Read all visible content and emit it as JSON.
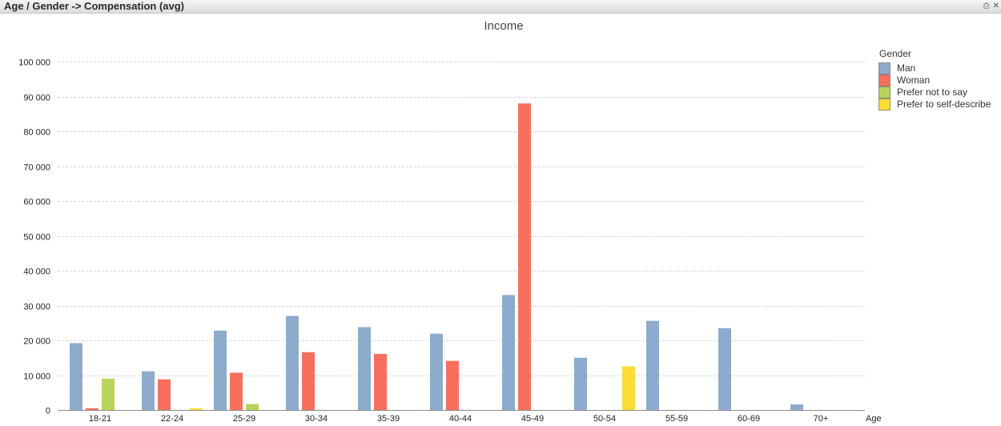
{
  "window": {
    "title": "Age / Gender -> Compensation (avg)",
    "print_icon": "print-icon",
    "close_icon": "close-icon"
  },
  "chart_data": {
    "type": "bar",
    "title": "Income",
    "xlabel": "Age",
    "ylabel": "",
    "ylim": [
      0,
      100000
    ],
    "yticks": [
      0,
      10000,
      20000,
      30000,
      40000,
      50000,
      60000,
      70000,
      80000,
      90000,
      100000
    ],
    "ytick_labels": [
      "0",
      "10 000",
      "20 000",
      "30 000",
      "40 000",
      "50 000",
      "60 000",
      "70 000",
      "80 000",
      "90 000",
      "100 000"
    ],
    "grid": true,
    "legend_title": "Gender",
    "legend_position": "top-right",
    "categories": [
      "18-21",
      "22-24",
      "25-29",
      "30-34",
      "35-39",
      "40-44",
      "45-49",
      "50-54",
      "55-59",
      "60-69",
      "70+"
    ],
    "series": [
      {
        "name": "Man",
        "color": "#8eabcc",
        "values": [
          19200,
          11100,
          22800,
          27000,
          23800,
          21900,
          33000,
          15000,
          25600,
          23500,
          1600
        ]
      },
      {
        "name": "Woman",
        "color": "#f7705e",
        "values": [
          500,
          8800,
          10700,
          16600,
          16100,
          14100,
          88000,
          0,
          0,
          0,
          0
        ]
      },
      {
        "name": "Prefer not to say",
        "color": "#b9d45a",
        "values": [
          9000,
          0,
          1700,
          0,
          0,
          0,
          0,
          0,
          0,
          0,
          0
        ]
      },
      {
        "name": "Prefer to self-describe",
        "color": "#fddc34",
        "values": [
          0,
          500,
          0,
          0,
          0,
          0,
          0,
          12500,
          0,
          0,
          0
        ]
      }
    ]
  }
}
